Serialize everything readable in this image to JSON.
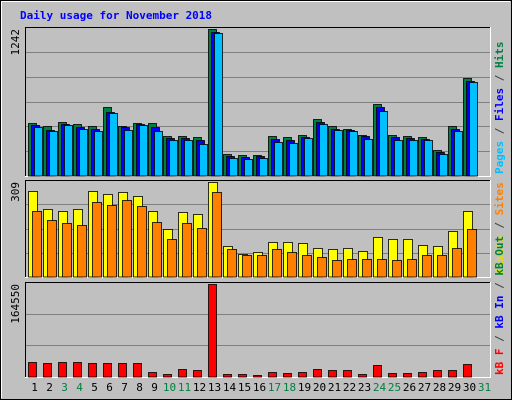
{
  "chart_data": {
    "type": "bar",
    "title": "Daily usage for November 2018",
    "categories": [
      "1",
      "2",
      "3",
      "4",
      "5",
      "6",
      "7",
      "8",
      "9",
      "10",
      "11",
      "12",
      "13",
      "14",
      "15",
      "16",
      "17",
      "18",
      "19",
      "20",
      "21",
      "22",
      "23",
      "24",
      "25",
      "26",
      "27",
      "28",
      "29",
      "30",
      "31"
    ],
    "weekend_days": [
      "3",
      "4",
      "10",
      "11",
      "17",
      "18",
      "24",
      "25",
      "31"
    ],
    "panels": [
      {
        "name": "hits-files-pages",
        "max_label": "1242",
        "ylim": [
          0,
          1242
        ],
        "right_legend": [
          {
            "text": "Pages",
            "color": "#00c0ff"
          },
          {
            "text": " / ",
            "color": "#404040"
          },
          {
            "text": "Files",
            "color": "#0000ff"
          },
          {
            "text": " / ",
            "color": "#404040"
          },
          {
            "text": "Hits",
            "color": "#008040"
          }
        ],
        "series": [
          {
            "name": "Hits",
            "color": "#008040",
            "values": [
              450,
              420,
              455,
              440,
              420,
              580,
              420,
              450,
              450,
              340,
              340,
              330,
              1242,
              190,
              180,
              180,
              340,
              330,
              350,
              480,
              420,
              400,
              350,
              610,
              350,
              340,
              330,
              220,
              420,
              830,
              0
            ]
          },
          {
            "name": "Files",
            "color": "#0000ff",
            "values": [
              430,
              390,
              440,
              410,
              400,
              540,
              410,
              440,
              410,
              320,
              320,
              300,
              1220,
              170,
              160,
              170,
              310,
              300,
              330,
              460,
              400,
              390,
              340,
              580,
              330,
              320,
              310,
              200,
              400,
              800,
              0
            ]
          },
          {
            "name": "Pages",
            "color": "#00c0ff",
            "values": [
              410,
              380,
              430,
              400,
              380,
              530,
              390,
              430,
              380,
              300,
              300,
              270,
              1210,
              150,
              140,
              150,
              290,
              280,
              320,
              440,
              390,
              380,
              310,
              550,
              300,
              300,
              300,
              190,
              380,
              790,
              0
            ]
          }
        ]
      },
      {
        "name": "visits-sites",
        "max_label": "309",
        "ylim": [
          0,
          309
        ],
        "right_legend": [
          {
            "text": "Visits",
            "color": "#e0e000"
          },
          {
            "text": " / ",
            "color": "#404040"
          },
          {
            "text": "Sites",
            "color": "#ff8000"
          }
        ],
        "series": [
          {
            "name": "Visits",
            "color": "#ffff00",
            "values": [
              280,
              220,
              215,
              220,
              280,
              270,
              275,
              265,
              215,
              155,
              210,
              205,
              309,
              100,
              75,
              80,
              115,
              115,
              110,
              95,
              90,
              95,
              85,
              130,
              125,
              125,
              105,
              100,
              150,
              215,
              0
            ]
          },
          {
            "name": "Sites",
            "color": "#ff8000",
            "values": [
              215,
              185,
              175,
              170,
              245,
              235,
              250,
              230,
              180,
              125,
              175,
              160,
              275,
              90,
              70,
              70,
              90,
              80,
              70,
              65,
              55,
              60,
              60,
              60,
              55,
              60,
              70,
              70,
              95,
              155,
              0
            ]
          }
        ]
      },
      {
        "name": "kbytes",
        "max_label": "164550",
        "ylim": [
          0,
          164550
        ],
        "right_legend": [
          {
            "text": "kB F",
            "color": "#ff0000"
          },
          {
            "text": " / ",
            "color": "#404040"
          },
          {
            "text": "kB In",
            "color": "#0000ff"
          },
          {
            "text": " / ",
            "color": "#404040"
          },
          {
            "text": "kB Out",
            "color": "#008040"
          }
        ],
        "series": [
          {
            "name": "kB F",
            "color": "#ff0000",
            "values": [
              27000,
              25000,
              26000,
              26000,
              25000,
              25000,
              24000,
              24000,
              9000,
              5000,
              14000,
              13000,
              164550,
              5000,
              5000,
              4000,
              9000,
              7000,
              8000,
              14000,
              12000,
              12000,
              5000,
              22000,
              7000,
              7000,
              8000,
              13000,
              12000,
              23000,
              0
            ]
          }
        ]
      }
    ],
    "grid": true
  }
}
